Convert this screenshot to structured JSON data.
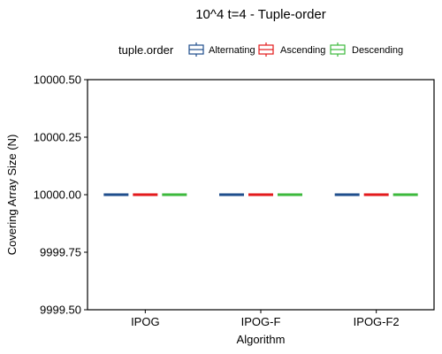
{
  "chart_data": {
    "type": "box",
    "title": "10^4 t=4 - Tuple-order",
    "xlabel": "Algorithm",
    "ylabel": "Covering Array Size (N)",
    "categories": [
      "IPOG",
      "IPOG-F",
      "IPOG-F2"
    ],
    "ylim": [
      9999.5,
      10000.5
    ],
    "yticks": [
      9999.5,
      9999.75,
      10000.0,
      10000.25,
      10000.5
    ],
    "ytick_labels": [
      "9999.50",
      "9999.75",
      "10000.00",
      "10000.25",
      "10000.50"
    ],
    "legend": {
      "title": "tuple.order",
      "placement": "top",
      "entries": [
        "Alternating",
        "Ascending",
        "Descending"
      ]
    },
    "series": [
      {
        "name": "Alternating",
        "color": "#1f4e8c",
        "values": [
          10000,
          10000,
          10000
        ]
      },
      {
        "name": "Ascending",
        "color": "#e31a1c",
        "values": [
          10000,
          10000,
          10000
        ]
      },
      {
        "name": "Descending",
        "color": "#3cb93c",
        "values": [
          10000,
          10000,
          10000
        ]
      }
    ],
    "grid": false
  }
}
